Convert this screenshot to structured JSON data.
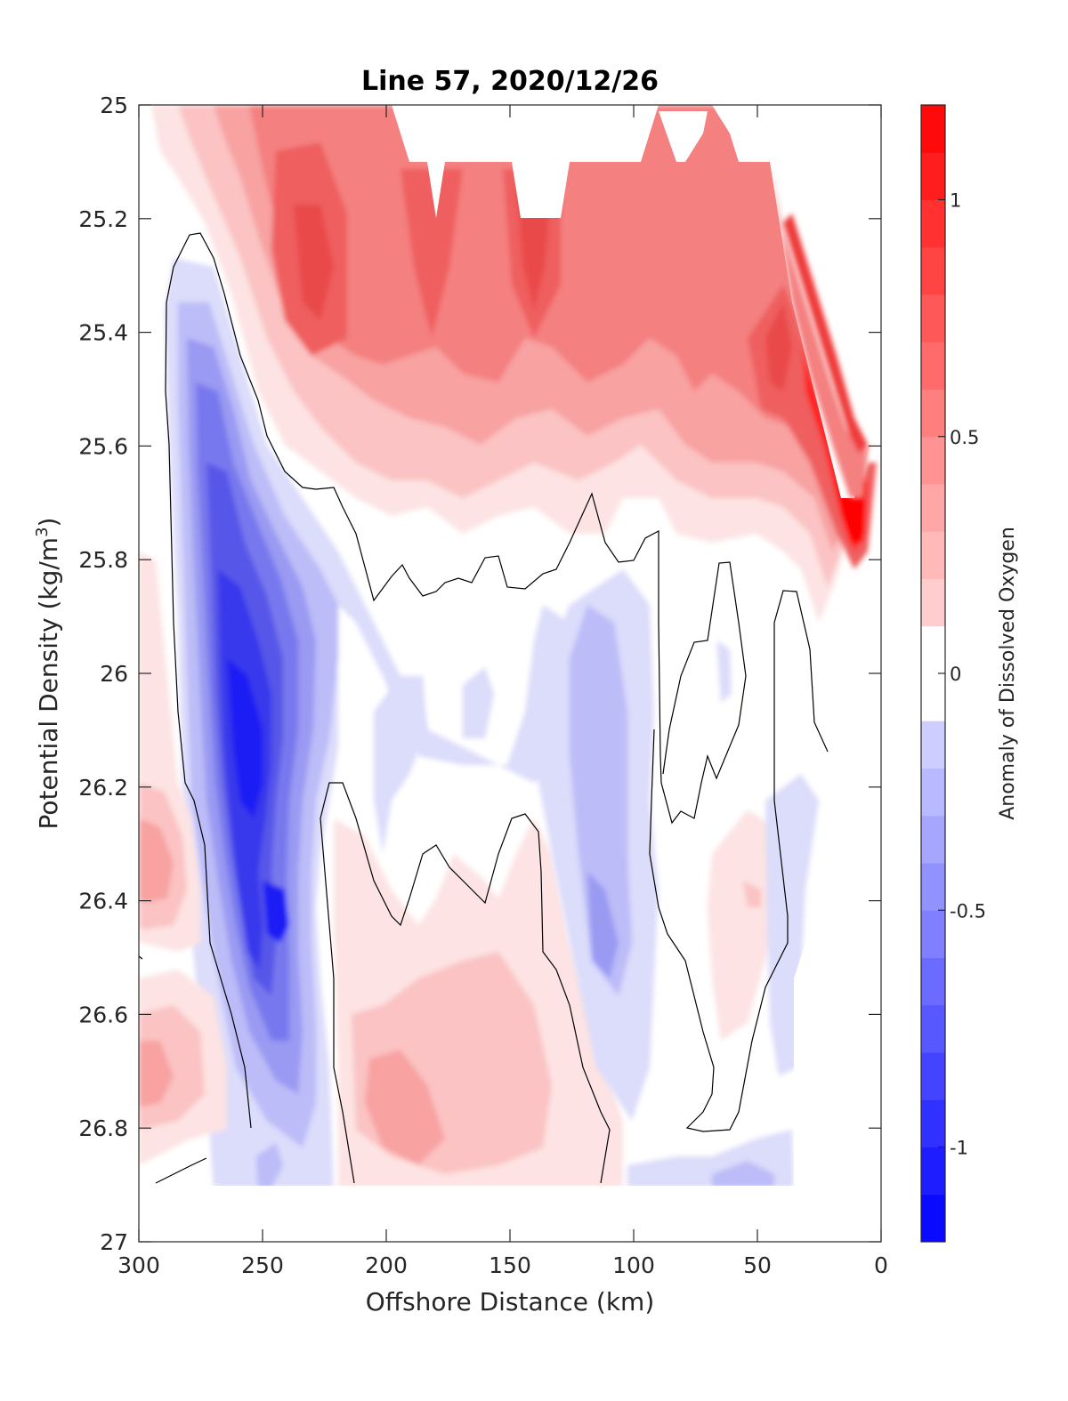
{
  "chart_data": {
    "type": "heatmap",
    "title": "Line 57, 2020/12/26",
    "xlabel": "Offshore Distance (km)",
    "ylabel_main": "Potential Density (kg/m",
    "ylabel_sup": "3",
    "ylabel_close": ")",
    "colorbar_label": "Anomaly of Dissolved Oxygen",
    "xlim": [
      300,
      0
    ],
    "ylim": [
      25,
      27
    ],
    "x_reversed": true,
    "y_reversed": true,
    "xticks": [
      "300",
      "250",
      "200",
      "150",
      "100",
      "50",
      "0"
    ],
    "xtick_values": [
      300,
      250,
      200,
      150,
      100,
      50,
      0
    ],
    "yticks": [
      "25",
      "25.2",
      "25.4",
      "25.6",
      "25.8",
      "26",
      "26.2",
      "26.4",
      "26.6",
      "26.8",
      "27"
    ],
    "ytick_values": [
      25,
      25.2,
      25.4,
      25.6,
      25.8,
      26,
      26.2,
      26.4,
      26.6,
      26.8,
      27
    ],
    "colorbar_ticks": [
      "1",
      "0.5",
      "0",
      "-0.5",
      "-1"
    ],
    "colorbar_tick_values": [
      1,
      0.5,
      0,
      -0.5,
      -1
    ],
    "colorbar_range": [
      -1.2,
      1.2
    ],
    "colorbar_levels": 24,
    "colormap": "blue-white-red",
    "colors": {
      "positive": "#ff0000",
      "negative": "#0000ff",
      "neutral": "#ffffff",
      "contour": "#000000"
    },
    "grid": false,
    "contour_level_zero": 0,
    "anomaly_features": [
      {
        "name": "positive",
        "x_center": 228,
        "y_center": 25.28,
        "value": 0.65
      },
      {
        "name": "positive",
        "x_center": 140,
        "y_center": 25.28,
        "value": 0.6
      },
      {
        "name": "positive",
        "x_center": 180,
        "y_center": 25.3,
        "value": 0.5
      },
      {
        "name": "positive",
        "x_center": 110,
        "y_center": 25.22,
        "value": 0.45
      },
      {
        "name": "positive",
        "x_center": 45,
        "y_center": 25.42,
        "value": 0.55
      },
      {
        "name": "positive",
        "x_center": 12,
        "y_center": 25.72,
        "value": 1.0
      },
      {
        "name": "positive",
        "x_center": 290,
        "y_center": 26.35,
        "value": 0.35
      },
      {
        "name": "positive",
        "x_center": 292,
        "y_center": 26.72,
        "value": 0.3
      },
      {
        "name": "positive",
        "x_center": 165,
        "y_center": 26.75,
        "value": 0.22
      },
      {
        "name": "positive",
        "x_center": 50,
        "y_center": 26.4,
        "value": 0.2
      },
      {
        "name": "negative",
        "x_center": 255,
        "y_center": 26.1,
        "value": -1.05
      },
      {
        "name": "negative",
        "x_center": 245,
        "y_center": 26.42,
        "value": -0.85
      },
      {
        "name": "negative",
        "x_center": 115,
        "y_center": 26.4,
        "value": -0.3
      },
      {
        "name": "negative",
        "x_center": 190,
        "y_center": 26.1,
        "value": -0.2
      },
      {
        "name": "negative",
        "x_center": 50,
        "y_center": 26.88,
        "value": -0.2
      }
    ]
  }
}
